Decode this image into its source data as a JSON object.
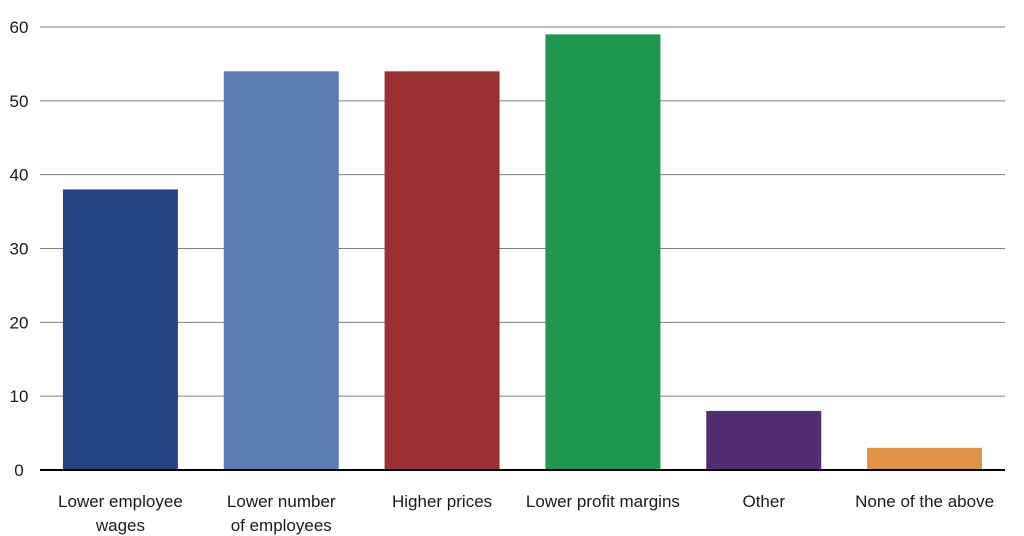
{
  "chart_data": {
    "type": "bar",
    "title": "",
    "xlabel": "",
    "ylabel": "",
    "categories": [
      [
        "Lower employee",
        "wages"
      ],
      [
        "Lower number",
        "of employees"
      ],
      [
        "Higher prices"
      ],
      [
        "Lower profit margins"
      ],
      [
        "Other"
      ],
      [
        "None of the above"
      ]
    ],
    "values": [
      38,
      54,
      54,
      59,
      8,
      3
    ],
    "colors": [
      "#244483",
      "#5b7db2",
      "#9b3135",
      "#1f9751",
      "#532d73",
      "#de9347"
    ],
    "ylim": [
      0,
      60
    ],
    "yticks": [
      "0",
      "10",
      "20",
      "30",
      "40",
      "50",
      "60"
    ],
    "grid": true,
    "legend": "none"
  }
}
